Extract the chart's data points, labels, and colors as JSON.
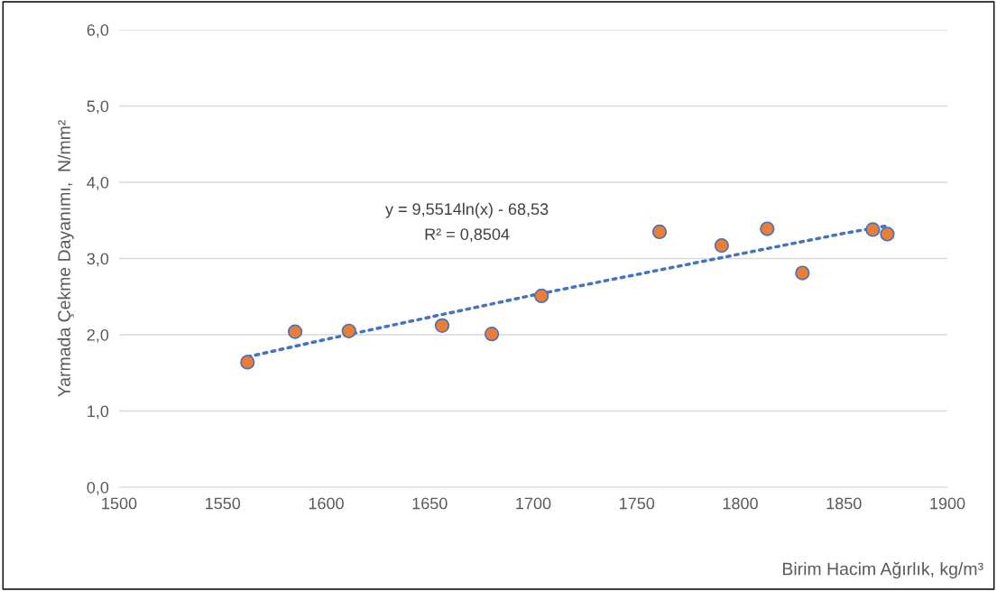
{
  "chart_data": {
    "type": "scatter",
    "xlabel": "Birim Hacim Ağırlık, kg/m³",
    "ylabel": "Yarmada Çekme Dayanımı,  N/mm²",
    "annotations": [
      "y = 9,5514ln(x) - 68,53",
      "R² = 0,8504"
    ],
    "xlim": [
      1500,
      1900
    ],
    "xticks": [
      1500,
      1550,
      1600,
      1650,
      1700,
      1750,
      1800,
      1850,
      1900
    ],
    "ylim": [
      0,
      6
    ],
    "yticks": [
      {
        "value": 0,
        "label": "0,0"
      },
      {
        "value": 1,
        "label": "1,0"
      },
      {
        "value": 2,
        "label": "2,0"
      },
      {
        "value": 3,
        "label": "3,0"
      },
      {
        "value": 4,
        "label": "4,0"
      },
      {
        "value": 5,
        "label": "5,0"
      },
      {
        "value": 6,
        "label": "6,0"
      }
    ],
    "grid": "y",
    "marker": "circle",
    "series": [
      {
        "color": "#ed7d31",
        "x": [
          1562,
          1585,
          1611,
          1656,
          1680,
          1704,
          1761,
          1791,
          1813,
          1830,
          1864,
          1871
        ],
        "values": [
          1.64,
          2.04,
          2.05,
          2.12,
          2.01,
          2.51,
          3.35,
          3.17,
          3.39,
          2.81,
          3.38,
          3.32
        ]
      },
      {
        "type": "line",
        "color": "#4472c4",
        "line_style": "dotted",
        "marker": "none",
        "x": [
          1562,
          1600,
          1650,
          1700,
          1750,
          1800,
          1850,
          1871
        ],
        "values": [
          1.71,
          1.94,
          2.23,
          2.52,
          2.79,
          3.06,
          3.33,
          3.43
        ]
      }
    ]
  }
}
